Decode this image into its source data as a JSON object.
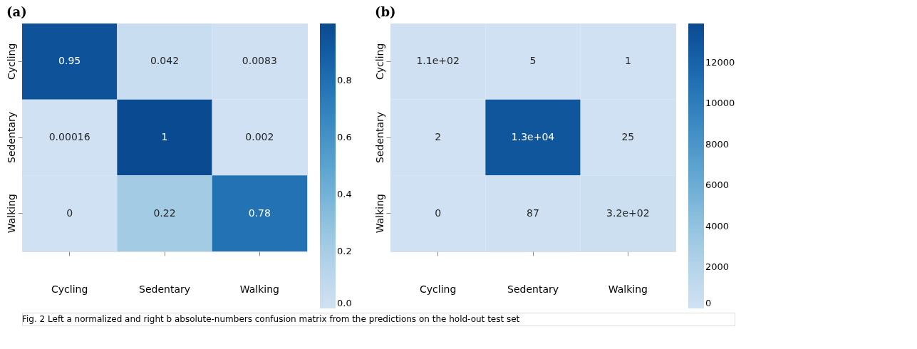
{
  "chart_data": [
    {
      "type": "heatmap",
      "title": "(a)",
      "categories": [
        "Cycling",
        "Sedentary",
        "Walking"
      ],
      "y_categories": [
        "Cycling",
        "Sedentary",
        "Walking"
      ],
      "cells": [
        [
          0.95,
          0.042,
          0.0083
        ],
        [
          0.00016,
          1,
          0.002
        ],
        [
          0,
          0.22,
          0.78
        ]
      ],
      "data_labels": true,
      "clim": [
        0,
        1.0
      ],
      "cticks": [
        {
          "value": 0,
          "label": "0.0"
        },
        0.2,
        0.4,
        0.6,
        0.8
      ],
      "annotations": [
        "Fig. 2 Left a normalized and right b absolute-numbers confusion matrix from the predictions on the hold-out test set"
      ]
    },
    {
      "type": "heatmap",
      "title": "(b)",
      "categories": [
        "Cycling",
        "Sedentary",
        "Walking"
      ],
      "y_categories": [
        "Cycling",
        "Sedentary",
        "Walking"
      ],
      "cells": [
        [
          110,
          5,
          1
        ],
        [
          2,
          13000,
          25
        ],
        [
          0,
          87,
          320
        ]
      ],
      "cell_labels": [
        [
          "1.1e+02",
          "5",
          "1"
        ],
        [
          "2",
          "1.3e+04",
          "25"
        ],
        [
          "0",
          "87",
          "3.2e+02"
        ]
      ],
      "clim": [
        0,
        13900
      ],
      "cticks": [
        0,
        2000,
        4000,
        6000,
        8000,
        10000,
        12000
      ]
    }
  ]
}
